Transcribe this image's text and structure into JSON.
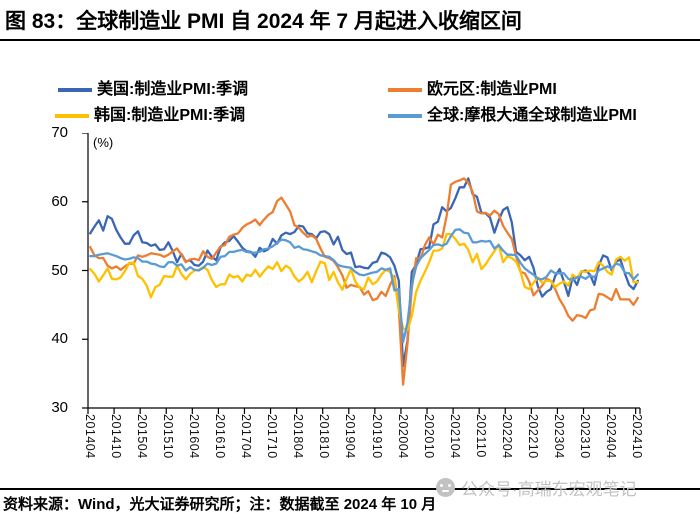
{
  "figure": {
    "title": "图 83：全球制造业 PMI 自 2024 年 7 月起进入收缩区间",
    "source_note": "资料来源：Wind，光大证券研究所；注：数据截至 2024 年 10 月",
    "watermark": "公众号·高瑞东宏观笔记"
  },
  "chart_data": {
    "type": "line",
    "unit_label": "(%)",
    "frequency": "monthly",
    "x_start": "201404",
    "x_end": "202410",
    "ylim": [
      30,
      70
    ],
    "yticks": [
      70,
      60,
      50,
      40,
      30
    ],
    "grid": false,
    "legend_position": "top",
    "xtick_labels": [
      "201404",
      "201410",
      "201504",
      "201510",
      "201604",
      "201610",
      "201704",
      "201710",
      "201804",
      "201810",
      "201904",
      "201910",
      "202004",
      "202010",
      "202104",
      "202110",
      "202204",
      "202210",
      "202304",
      "202310",
      "202404",
      "202410"
    ],
    "series": [
      {
        "name": "美国:制造业PMI:季调",
        "color": "#3A66B3",
        "values": [
          55.4,
          56.4,
          57.3,
          55.8,
          57.9,
          57.5,
          55.9,
          54.8,
          53.9,
          53.9,
          55.1,
          55.7,
          54.1,
          54.0,
          53.6,
          53.8,
          53.0,
          53.1,
          54.1,
          52.8,
          51.2,
          52.4,
          51.3,
          51.5,
          50.8,
          50.7,
          51.3,
          52.9,
          52.0,
          51.5,
          53.4,
          54.1,
          54.3,
          55.0,
          54.2,
          53.3,
          52.8,
          52.7,
          52.0,
          53.3,
          52.8,
          53.1,
          54.6,
          53.9,
          55.1,
          55.5,
          55.3,
          55.6,
          56.5,
          56.4,
          55.4,
          55.3,
          54.7,
          55.6,
          55.7,
          55.3,
          53.8,
          54.9,
          53.0,
          52.4,
          52.6,
          50.5,
          50.6,
          50.4,
          50.3,
          51.1,
          51.3,
          52.6,
          52.4,
          51.9,
          50.7,
          48.5,
          36.1,
          39.8,
          49.8,
          50.9,
          53.1,
          53.2,
          53.4,
          56.7,
          57.1,
          59.2,
          58.6,
          59.1,
          60.5,
          62.1,
          62.1,
          63.4,
          61.1,
          60.7,
          58.4,
          58.3,
          57.7,
          55.5,
          57.3,
          58.8,
          59.2,
          57.0,
          52.7,
          52.2,
          51.5,
          52.0,
          50.4,
          47.7,
          46.2,
          46.9,
          47.3,
          49.2,
          50.2,
          48.4,
          46.3,
          49.0,
          47.9,
          49.8,
          50.0,
          49.4,
          47.9,
          50.7,
          52.2,
          51.9,
          50.0,
          51.3,
          51.6,
          49.6,
          47.9,
          47.3,
          48.5
        ]
      },
      {
        "name": "欧元区:制造业PMI",
        "color": "#ED7D31",
        "values": [
          53.4,
          52.2,
          51.8,
          51.8,
          50.7,
          50.3,
          50.6,
          50.1,
          50.6,
          51.0,
          51.0,
          52.2,
          52.0,
          52.2,
          52.5,
          52.4,
          52.3,
          52.0,
          52.3,
          52.8,
          53.2,
          52.3,
          51.2,
          51.6,
          51.7,
          51.5,
          52.8,
          52.0,
          51.7,
          52.6,
          53.5,
          53.7,
          54.9,
          55.2,
          55.4,
          56.2,
          56.7,
          57.0,
          57.4,
          56.6,
          57.4,
          58.1,
          58.5,
          60.1,
          60.6,
          59.6,
          58.6,
          56.6,
          56.2,
          55.5,
          54.9,
          55.1,
          54.6,
          53.2,
          52.0,
          51.8,
          51.4,
          50.5,
          49.3,
          47.5,
          47.9,
          47.7,
          47.6,
          46.5,
          47.0,
          45.7,
          45.9,
          46.9,
          46.3,
          47.9,
          49.2,
          44.5,
          33.4,
          39.4,
          47.4,
          51.8,
          51.7,
          53.7,
          54.8,
          53.8,
          55.2,
          54.8,
          57.9,
          62.5,
          62.9,
          63.1,
          63.4,
          62.8,
          61.4,
          58.6,
          58.3,
          58.4,
          58.0,
          58.7,
          58.2,
          56.5,
          55.5,
          54.6,
          52.1,
          49.8,
          49.6,
          48.4,
          46.4,
          47.1,
          47.8,
          48.8,
          48.5,
          47.3,
          45.8,
          44.8,
          43.4,
          42.7,
          43.5,
          43.4,
          43.1,
          44.2,
          44.4,
          46.6,
          46.5,
          46.1,
          45.7,
          47.3,
          45.8,
          45.8,
          45.8,
          45.0,
          46.0
        ]
      },
      {
        "name": "韩国:制造业PMI:季调",
        "color": "#FFC000",
        "values": [
          50.2,
          49.5,
          48.4,
          49.3,
          50.3,
          48.8,
          48.7,
          49.0,
          49.9,
          51.1,
          51.1,
          49.2,
          48.8,
          47.8,
          46.1,
          47.6,
          47.9,
          49.2,
          49.1,
          49.1,
          50.7,
          49.5,
          48.7,
          49.5,
          50.0,
          50.1,
          50.5,
          50.1,
          48.6,
          47.6,
          48.0,
          48.0,
          49.4,
          49.0,
          49.2,
          48.4,
          49.4,
          49.2,
          50.1,
          49.1,
          49.9,
          50.6,
          50.2,
          51.2,
          49.9,
          50.7,
          50.3,
          49.1,
          48.4,
          48.9,
          49.8,
          48.3,
          49.9,
          51.3,
          51.0,
          48.6,
          49.8,
          48.3,
          47.2,
          48.8,
          50.2,
          48.4,
          47.5,
          47.3,
          49.0,
          48.0,
          48.4,
          49.4,
          50.1,
          49.8,
          48.7,
          44.2,
          41.6,
          41.3,
          43.4,
          46.9,
          48.5,
          49.8,
          51.2,
          52.9,
          52.9,
          53.2,
          55.3,
          55.3,
          54.6,
          53.7,
          53.9,
          53.0,
          51.2,
          52.4,
          50.2,
          50.9,
          51.9,
          52.8,
          53.8,
          51.2,
          52.1,
          51.8,
          51.3,
          49.8,
          47.6,
          47.3,
          48.2,
          49.0,
          48.2,
          48.5,
          48.5,
          47.6,
          48.1,
          48.4,
          47.8,
          49.4,
          48.9,
          49.9,
          49.8,
          50.0,
          49.9,
          51.2,
          50.7,
          49.8,
          49.4,
          51.6,
          52.0,
          51.4,
          51.9,
          48.3,
          48.3
        ]
      },
      {
        "name": "全球:摩根大通全球制造业PMI",
        "color": "#5B9BD5",
        "values": [
          52.1,
          52.1,
          52.3,
          52.4,
          52.5,
          52.3,
          52.1,
          51.8,
          51.6,
          51.7,
          51.9,
          51.8,
          51.3,
          51.3,
          51.0,
          50.9,
          50.6,
          50.5,
          51.2,
          51.2,
          50.7,
          50.9,
          50.0,
          50.5,
          50.1,
          50.0,
          50.4,
          51.0,
          50.8,
          51.0,
          52.0,
          52.1,
          52.7,
          52.7,
          52.9,
          53.0,
          52.7,
          52.6,
          52.6,
          52.7,
          53.1,
          53.2,
          53.5,
          54.0,
          54.5,
          54.4,
          54.1,
          53.3,
          53.5,
          53.1,
          53.0,
          52.8,
          52.6,
          52.2,
          52.1,
          52.0,
          51.5,
          50.8,
          50.6,
          50.5,
          50.4,
          49.8,
          49.4,
          49.3,
          49.5,
          49.7,
          49.8,
          50.3,
          50.1,
          50.3,
          47.1,
          47.3,
          39.6,
          42.4,
          47.9,
          50.6,
          51.8,
          52.4,
          53.0,
          53.7,
          53.8,
          53.6,
          53.9,
          55.0,
          55.9,
          56.0,
          55.5,
          55.4,
          54.1,
          54.1,
          54.3,
          54.2,
          54.3,
          53.2,
          53.7,
          52.9,
          52.3,
          52.3,
          52.2,
          51.1,
          50.3,
          49.8,
          49.4,
          48.8,
          48.7,
          49.1,
          50.0,
          49.6,
          49.6,
          49.6,
          48.8,
          48.6,
          49.0,
          49.1,
          48.8,
          49.3,
          49.0,
          50.0,
          50.3,
          50.6,
          50.3,
          51.0,
          50.8,
          49.7,
          49.6,
          48.7,
          49.4
        ]
      }
    ]
  }
}
